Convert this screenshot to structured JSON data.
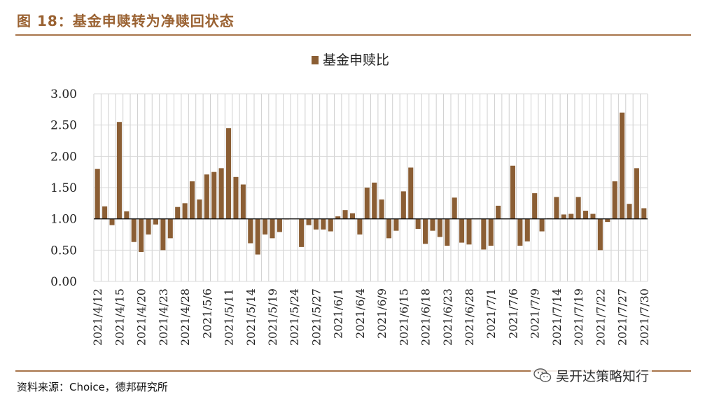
{
  "header": {
    "title": "图 18：基金申赎转为净赎回状态"
  },
  "footer": {
    "source": "资料来源：Choice，德邦研究所",
    "watermark": "吴开达策略知行"
  },
  "colors": {
    "bar": "#8b5e34",
    "accent": "#9a6232",
    "grid": "#cfcfcf"
  },
  "chart_data": {
    "type": "bar",
    "title": "",
    "legend": "基金申赎比",
    "legend_position": "top-center",
    "xlabel": "",
    "ylabel": "",
    "ylim": [
      0,
      3
    ],
    "yticks": [
      "0.00",
      "0.50",
      "1.00",
      "1.50",
      "2.00",
      "2.50",
      "3.00"
    ],
    "baseline": 1.0,
    "grid": true,
    "series": [
      {
        "name": "基金申赎比",
        "values": [
          1.8,
          1.2,
          0.9,
          2.55,
          1.12,
          0.63,
          0.47,
          0.75,
          0.91,
          0.5,
          0.69,
          1.19,
          1.25,
          1.6,
          1.31,
          1.71,
          1.75,
          1.81,
          2.45,
          1.67,
          1.55,
          0.61,
          0.43,
          0.75,
          0.69,
          0.79,
          0.99,
          1.0,
          0.55,
          0.9,
          0.83,
          0.83,
          0.8,
          1.04,
          1.14,
          1.09,
          0.75,
          1.5,
          1.58,
          1.31,
          0.69,
          0.81,
          1.44,
          1.82,
          0.84,
          0.6,
          0.81,
          0.71,
          0.57,
          1.34,
          0.62,
          0.59,
          1.0,
          0.51,
          0.57,
          1.21,
          1.0,
          1.85,
          0.57,
          0.64,
          1.41,
          0.8,
          1.01,
          1.35,
          1.07,
          1.08,
          1.35,
          1.13,
          1.08,
          0.5,
          0.95,
          1.6,
          2.7,
          1.24,
          1.81,
          1.17
        ]
      }
    ],
    "x_tick_labels": [
      "2021/4/12",
      "2021/4/15",
      "2021/4/20",
      "2021/4/23",
      "2021/4/28",
      "2021/5/6",
      "2021/5/11",
      "2021/5/14",
      "2021/5/19",
      "2021/5/24",
      "2021/5/27",
      "2021/6/1",
      "2021/6/4",
      "2021/6/9",
      "2021/6/15",
      "2021/6/18",
      "2021/6/23",
      "2021/6/28",
      "2021/7/1",
      "2021/7/6",
      "2021/7/9",
      "2021/7/14",
      "2021/7/19",
      "2021/7/22",
      "2021/7/27",
      "2021/7/30"
    ],
    "x_tick_every": 3
  }
}
